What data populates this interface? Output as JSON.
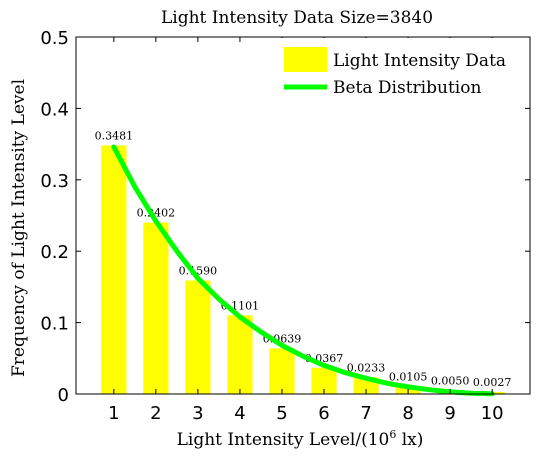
{
  "chart_data": {
    "type": "bar",
    "title": "Light Intensity Data Size=3840",
    "xlabel": {
      "prefix": "Light Intensity Level/(10",
      "sup": "6",
      "suffix": " lx)"
    },
    "ylabel": "Frequency of Light Intensity Level",
    "categories": [
      "1",
      "2",
      "3",
      "4",
      "5",
      "6",
      "7",
      "8",
      "9",
      "10"
    ],
    "ylim": [
      0,
      0.5
    ],
    "yticks": [
      "0",
      "0.1",
      "0.2",
      "0.3",
      "0.4",
      "0.5"
    ],
    "grid": false,
    "legend_position": "top-right",
    "series": [
      {
        "name": "Light Intensity Data",
        "type": "bar",
        "color": "#ffff00",
        "values": [
          0.3481,
          0.2402,
          0.159,
          0.1101,
          0.0639,
          0.0367,
          0.0233,
          0.0105,
          0.005,
          0.0027
        ],
        "labels": [
          "0.3481",
          "0.2402",
          "0.1590",
          "0.1101",
          "0.0639",
          "0.0367",
          "0.0233",
          "0.0105",
          "0.0050",
          "0.0027"
        ]
      },
      {
        "name": "Beta Distribution",
        "type": "line",
        "color": "#00ff00",
        "x": [
          1,
          1.5,
          2,
          2.5,
          3,
          3.5,
          4,
          4.5,
          5,
          5.5,
          6,
          6.5,
          7,
          7.5,
          8,
          8.5,
          9,
          9.5,
          10
        ],
        "values": [
          0.346,
          0.29,
          0.242,
          0.2,
          0.162,
          0.133,
          0.108,
          0.087,
          0.068,
          0.053,
          0.04,
          0.03,
          0.022,
          0.015,
          0.01,
          0.006,
          0.003,
          0.001,
          0.0003
        ]
      }
    ]
  }
}
